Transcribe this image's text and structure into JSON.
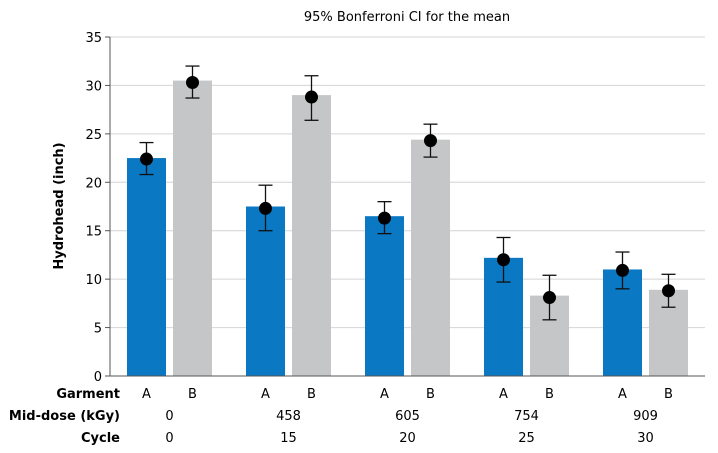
{
  "chart_data": {
    "type": "bar",
    "title": "95% Bonferroni CI for the mean",
    "ylabel": "Hydrohead (inch)",
    "ylim": [
      0,
      35
    ],
    "yticks": [
      0,
      5,
      10,
      15,
      20,
      25,
      30,
      35
    ],
    "row_labels": {
      "garment": "Garment",
      "dose": "Mid-dose (kGy)",
      "cycle": "Cycle"
    },
    "groups": [
      {
        "dose": "0",
        "cycle": "0"
      },
      {
        "dose": "458",
        "cycle": "15"
      },
      {
        "dose": "605",
        "cycle": "20"
      },
      {
        "dose": "754",
        "cycle": "25"
      },
      {
        "dose": "909",
        "cycle": "30"
      }
    ],
    "series": [
      {
        "name": "A",
        "color": "#0a78c3",
        "values": [
          22.5,
          17.5,
          16.5,
          12.2,
          11.0
        ],
        "means": [
          22.4,
          17.3,
          16.3,
          12.0,
          10.9
        ],
        "ci_low": [
          20.8,
          15.0,
          14.7,
          9.7,
          9.0
        ],
        "ci_high": [
          24.1,
          19.7,
          18.0,
          14.3,
          12.8
        ]
      },
      {
        "name": "B",
        "color": "#c5c6c8",
        "values": [
          30.5,
          29.0,
          24.4,
          8.3,
          8.9
        ],
        "means": [
          30.3,
          28.8,
          24.3,
          8.1,
          8.8
        ],
        "ci_low": [
          28.7,
          26.4,
          22.6,
          5.8,
          7.1
        ],
        "ci_high": [
          32.0,
          31.0,
          26.0,
          10.4,
          10.5
        ]
      }
    ],
    "grid": true,
    "legend": "none"
  }
}
